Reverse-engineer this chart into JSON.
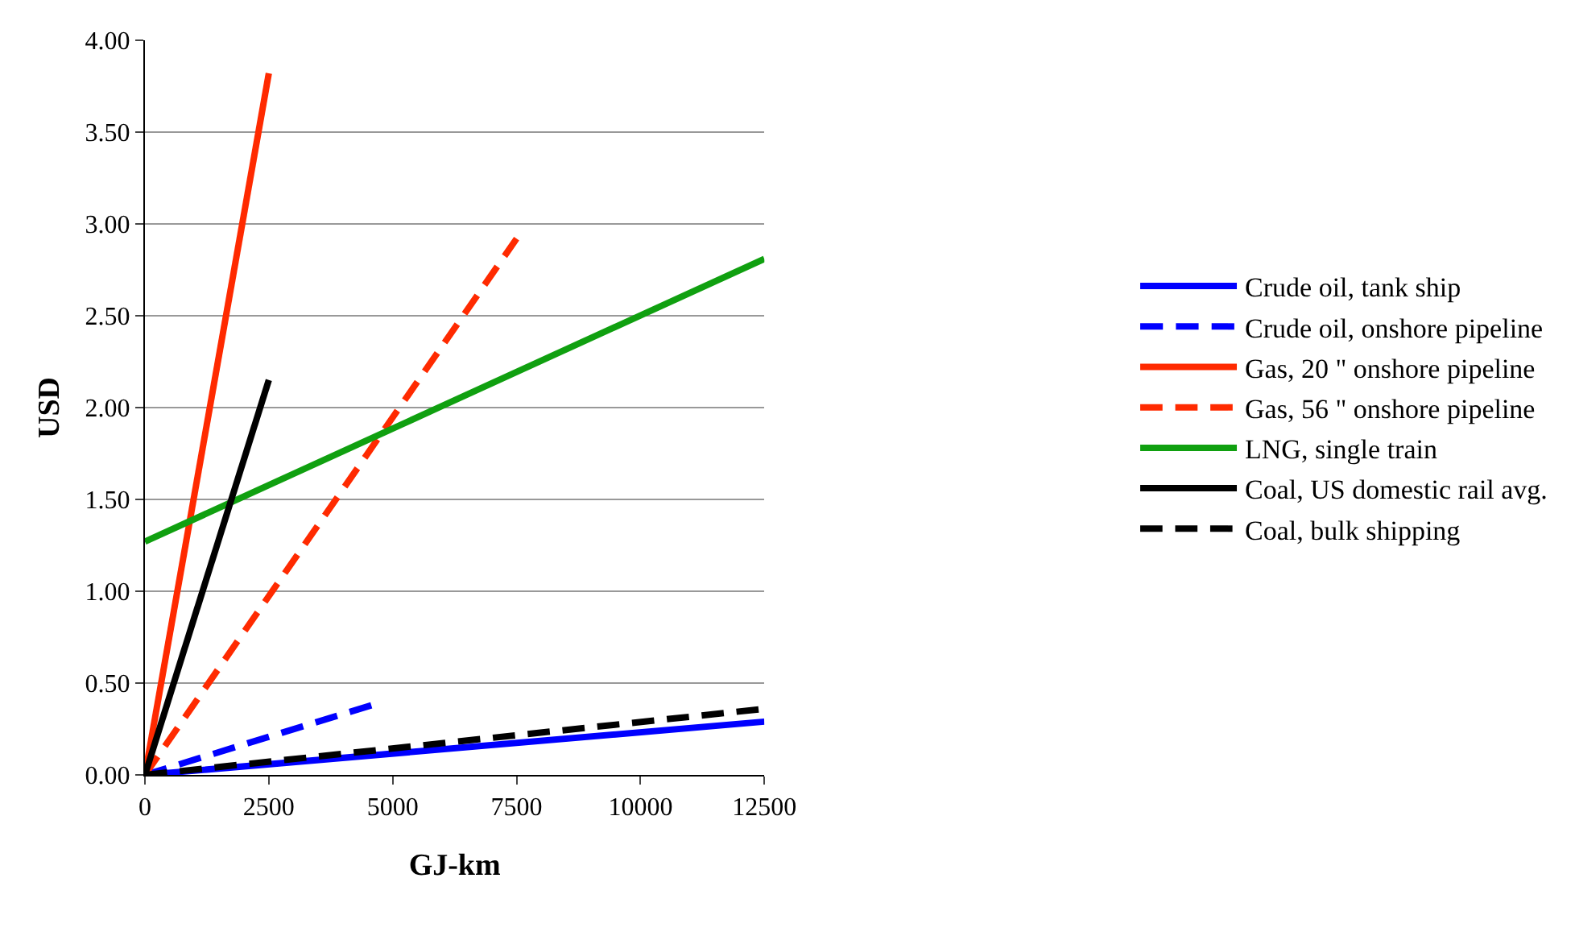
{
  "chart_data": {
    "type": "line",
    "xlabel": "GJ-km",
    "ylabel": "USD",
    "xlim": [
      0,
      12500
    ],
    "xticks": [
      0,
      2500,
      5000,
      7500,
      10000,
      12500
    ],
    "ylim": [
      0,
      4
    ],
    "yticks": [
      {
        "value": 0,
        "label": "0.00"
      },
      {
        "value": 0.5,
        "label": "0.50"
      },
      {
        "value": 1,
        "label": "1.00"
      },
      {
        "value": 1.5,
        "label": "1.50"
      },
      {
        "value": 2,
        "label": "2.00"
      },
      {
        "value": 2.5,
        "label": "2.50"
      },
      {
        "value": 3,
        "label": "3.00"
      },
      {
        "value": 3.5,
        "label": "3.50"
      },
      {
        "value": 4,
        "label": "4.00"
      }
    ],
    "grid": "y",
    "legend": "right",
    "marker": "none",
    "series": [
      {
        "name": "Crude oil, tank ship",
        "color": "#0000ff",
        "x": [
          0,
          12500
        ],
        "values": [
          0,
          0.29
        ],
        "line_style": "solid"
      },
      {
        "name": "Crude oil, onshore pipeline",
        "color": "#0000ff",
        "x": [
          0,
          4700
        ],
        "values": [
          0,
          0.39
        ],
        "line_style": "dashed"
      },
      {
        "name": "Gas, 20 \" onshore pipeline",
        "color": "#ff2a00",
        "x": [
          0,
          2500
        ],
        "values": [
          0,
          3.82
        ],
        "line_style": "solid"
      },
      {
        "name": "Gas, 56 \" onshore pipeline",
        "color": "#ff2a00",
        "x": [
          0,
          7500
        ],
        "values": [
          0,
          2.92
        ],
        "line_style": "dashed"
      },
      {
        "name": "LNG, single train",
        "color": "#10a010",
        "x": [
          0,
          12500
        ],
        "values": [
          1.27,
          2.81
        ],
        "line_style": "solid"
      },
      {
        "name": "Coal, US domestic rail avg.",
        "color": "#000000",
        "x": [
          0,
          2500
        ],
        "values": [
          0,
          2.15
        ],
        "line_style": "solid"
      },
      {
        "name": "Coal, bulk shipping",
        "color": "#000000",
        "x": [
          0,
          12500
        ],
        "values": [
          0,
          0.36
        ],
        "line_style": "dashed"
      }
    ]
  }
}
